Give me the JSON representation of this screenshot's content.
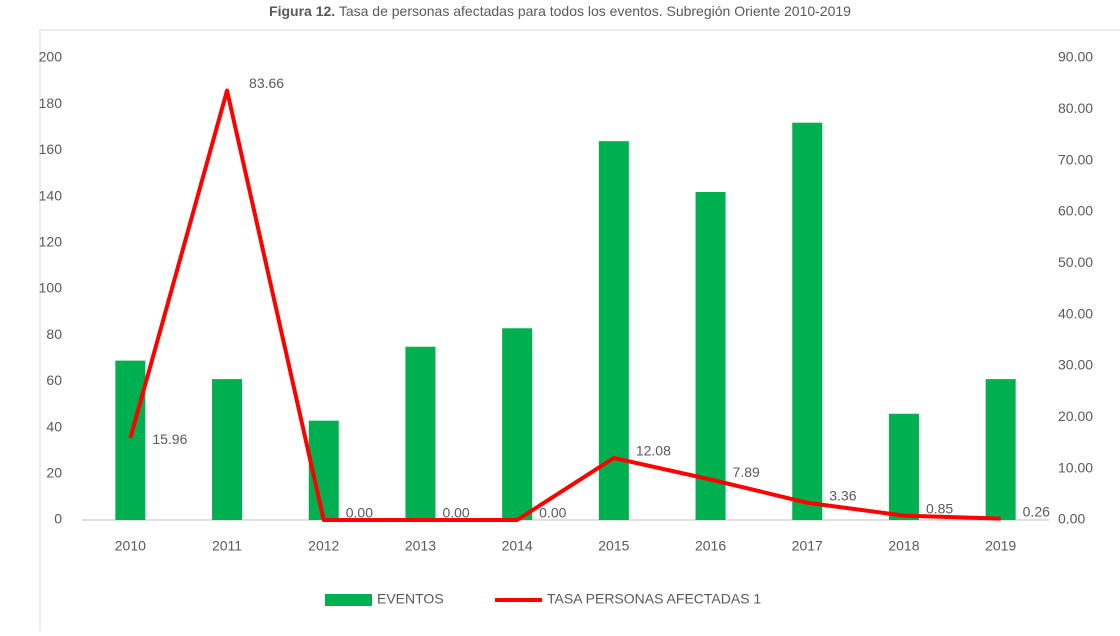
{
  "chart_data": {
    "type": "bar_line",
    "title_label": "Figura 12.",
    "title": "Tasa de personas afectadas para todos los eventos. Subregión Oriente 2010-2019",
    "categories": [
      "2010",
      "2011",
      "2012",
      "2013",
      "2014",
      "2015",
      "2016",
      "2017",
      "2018",
      "2019"
    ],
    "series": [
      {
        "name": "EVENTOS",
        "color": "#00b050",
        "type": "bar",
        "values": [
          69,
          61,
          43,
          75,
          83,
          164,
          142,
          172,
          46,
          61
        ]
      },
      {
        "name": "TASA PERSONAS AFECTADAS 1",
        "color": "#ff0000",
        "type": "line",
        "axis": "y2",
        "values": [
          15.96,
          83.66,
          0,
          0,
          0,
          12.08,
          7.89,
          3.36,
          0.85,
          0.26
        ],
        "value_labels": [
          "15.96",
          "83.66",
          "0.00",
          "0.00",
          "0.00",
          "12.08",
          "7.89",
          "3.36",
          "0.85",
          "0.26"
        ]
      }
    ],
    "ylim": [
      0,
      200
    ],
    "yticks": [
      0,
      20,
      40,
      60,
      80,
      100,
      120,
      140,
      160,
      180,
      200
    ],
    "y2lim": [
      0,
      90
    ],
    "y2ticks": [
      {
        "value": 0,
        "label": "0.00"
      },
      {
        "value": 10,
        "label": "10.00"
      },
      {
        "value": 20,
        "label": "20.00"
      },
      {
        "value": 30,
        "label": "30.00"
      },
      {
        "value": 40,
        "label": "40.00"
      },
      {
        "value": 50,
        "label": "50.00"
      },
      {
        "value": 60,
        "label": "60.00"
      },
      {
        "value": 70,
        "label": "70.00"
      },
      {
        "value": 80,
        "label": "80.00"
      },
      {
        "value": 90,
        "label": "90.00"
      }
    ],
    "legend": "bottom"
  }
}
